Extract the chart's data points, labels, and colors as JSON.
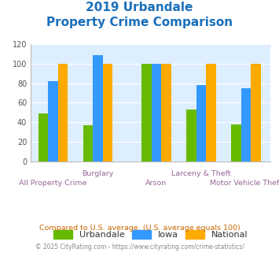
{
  "title_line1": "2019 Urbandale",
  "title_line2": "Property Crime Comparison",
  "title_color": "#1a6fba",
  "groups": [
    {
      "x": 0.0,
      "urbandale": 49,
      "iowa": 82,
      "national": 100
    },
    {
      "x": 1.0,
      "urbandale": 37,
      "iowa": 109,
      "national": 100
    },
    {
      "x": 2.3,
      "urbandale": 100,
      "iowa": 100,
      "national": 100
    },
    {
      "x": 3.3,
      "urbandale": 53,
      "iowa": 78,
      "national": 100
    },
    {
      "x": 4.3,
      "urbandale": 38,
      "iowa": 75,
      "national": 100
    }
  ],
  "row1_labels": {
    "1": "Burglary",
    "3": "Larceny & Theft"
  },
  "row2_labels": {
    "0": "All Property Crime",
    "2": "Arson",
    "4": "Motor Vehicle Theft"
  },
  "urbandale_color": "#66bb00",
  "iowa_color": "#3399ff",
  "national_color": "#ffaa00",
  "plot_bg_color": "#ddeeff",
  "ylim": [
    0,
    120
  ],
  "yticks": [
    0,
    20,
    40,
    60,
    80,
    100,
    120
  ],
  "label_color": "#996699",
  "footnote1": "Compared to U.S. average. (U.S. average equals 100)",
  "footnote2": "© 2025 CityRating.com - https://www.cityrating.com/crime-statistics/",
  "footnote1_color": "#cc6600",
  "footnote2_color": "#888888",
  "legend_labels": [
    "Urbandale",
    "Iowa",
    "National"
  ]
}
